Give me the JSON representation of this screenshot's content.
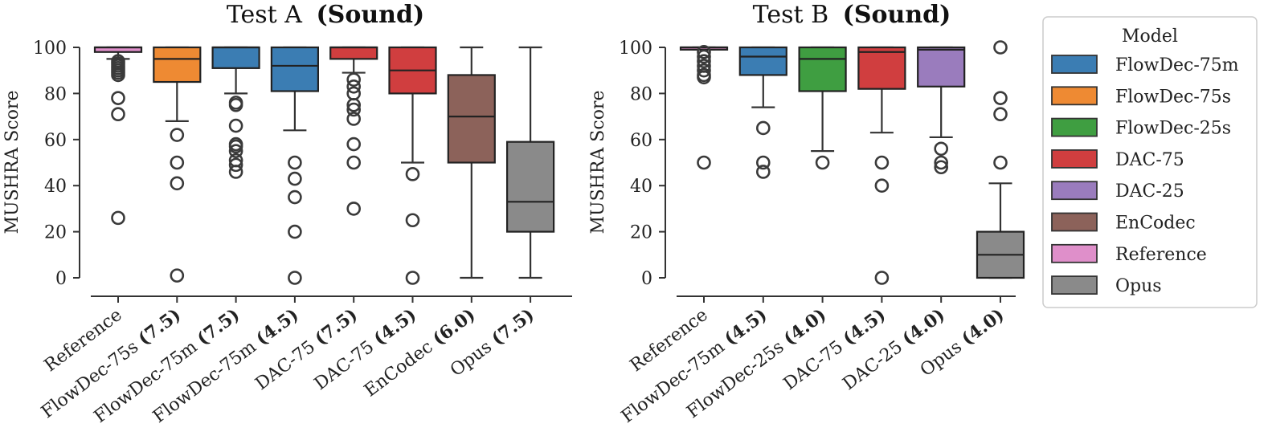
{
  "chart_data": [
    {
      "type": "box",
      "title": "Test A",
      "title_bold": "(Sound)",
      "xlabel": "",
      "ylabel": "MUSHRA Score",
      "ylim": [
        0,
        100
      ],
      "yticks": [
        0,
        20,
        40,
        60,
        80,
        100
      ],
      "grid": false,
      "categories": [
        {
          "label": "Reference",
          "bold": ""
        },
        {
          "label": "FlowDec-75s",
          "bold": "(7.5)"
        },
        {
          "label": "FlowDec-75m",
          "bold": "(7.5)"
        },
        {
          "label": "FlowDec-75m",
          "bold": "(4.5)"
        },
        {
          "label": "DAC-75",
          "bold": "(7.5)"
        },
        {
          "label": "DAC-75",
          "bold": "(4.5)"
        },
        {
          "label": "EnCodec",
          "bold": "(6.0)"
        },
        {
          "label": "Opus",
          "bold": "(7.5)"
        }
      ],
      "boxes": [
        {
          "model": "Reference",
          "whislo": 95,
          "q1": 98,
          "med": 100,
          "q3": 100,
          "whishi": 100,
          "fliers": [
            94,
            93,
            92,
            91,
            90,
            89,
            88,
            78,
            71,
            26
          ]
        },
        {
          "model": "FlowDec-75s",
          "whislo": 68,
          "q1": 85,
          "med": 95,
          "q3": 100,
          "whishi": 100,
          "fliers": [
            62,
            50,
            41,
            1
          ]
        },
        {
          "model": "FlowDec-75m",
          "whislo": 80,
          "q1": 91,
          "med": 100,
          "q3": 100,
          "whishi": 100,
          "fliers": [
            76,
            75,
            66,
            58,
            57,
            55,
            51,
            49,
            46
          ]
        },
        {
          "model": "FlowDec-75m",
          "whislo": 64,
          "q1": 81,
          "med": 92,
          "q3": 100,
          "whishi": 100,
          "fliers": [
            50,
            43,
            35,
            20,
            0
          ]
        },
        {
          "model": "DAC-75",
          "whislo": 89,
          "q1": 95,
          "med": 100,
          "q3": 100,
          "whishi": 100,
          "fliers": [
            86,
            83,
            80,
            75,
            73,
            69,
            58,
            50,
            30
          ]
        },
        {
          "model": "DAC-75",
          "whislo": 50,
          "q1": 80,
          "med": 90,
          "q3": 100,
          "whishi": 100,
          "fliers": [
            45,
            25,
            0
          ]
        },
        {
          "model": "EnCodec",
          "whislo": 0,
          "q1": 50,
          "med": 70,
          "q3": 88,
          "whishi": 100,
          "fliers": []
        },
        {
          "model": "Opus",
          "whislo": 0,
          "q1": 20,
          "med": 33,
          "q3": 59,
          "whishi": 100,
          "fliers": []
        }
      ]
    },
    {
      "type": "box",
      "title": "Test B",
      "title_bold": "(Sound)",
      "xlabel": "",
      "ylabel": "MUSHRA Score",
      "ylim": [
        0,
        100
      ],
      "yticks": [
        0,
        20,
        40,
        60,
        80,
        100
      ],
      "grid": false,
      "categories": [
        {
          "label": "Reference",
          "bold": ""
        },
        {
          "label": "FlowDec-75m",
          "bold": "(4.5)"
        },
        {
          "label": "FlowDec-25s",
          "bold": "(4.0)"
        },
        {
          "label": "DAC-75",
          "bold": "(4.5)"
        },
        {
          "label": "DAC-25",
          "bold": "(4.0)"
        },
        {
          "label": "Opus",
          "bold": "(4.0)"
        }
      ],
      "boxes": [
        {
          "model": "Reference",
          "whislo": 99,
          "q1": 99,
          "med": 100,
          "q3": 100,
          "whishi": 100,
          "fliers": [
            98,
            96,
            94,
            92,
            90,
            88,
            87,
            50
          ]
        },
        {
          "model": "FlowDec-75m",
          "whislo": 74,
          "q1": 88,
          "med": 96,
          "q3": 100,
          "whishi": 100,
          "fliers": [
            65,
            50,
            46
          ]
        },
        {
          "model": "FlowDec-25s",
          "whislo": 55,
          "q1": 81,
          "med": 95,
          "q3": 100,
          "whishi": 100,
          "fliers": [
            50
          ]
        },
        {
          "model": "DAC-75",
          "whislo": 63,
          "q1": 82,
          "med": 98,
          "q3": 100,
          "whishi": 100,
          "fliers": [
            50,
            40,
            0
          ]
        },
        {
          "model": "DAC-25",
          "whislo": 61,
          "q1": 83,
          "med": 99,
          "q3": 100,
          "whishi": 100,
          "fliers": [
            56,
            50,
            48
          ]
        },
        {
          "model": "Opus",
          "whislo": 0,
          "q1": 0,
          "med": 10,
          "q3": 20,
          "whishi": 41,
          "fliers": [
            100,
            78,
            71,
            50
          ]
        }
      ]
    }
  ],
  "legend": {
    "title": "Model",
    "placement": "right",
    "items": [
      {
        "label": "FlowDec-75m",
        "color": "#3b7db3"
      },
      {
        "label": "FlowDec-75s",
        "color": "#ee8a33"
      },
      {
        "label": "FlowDec-25s",
        "color": "#3f9e41"
      },
      {
        "label": "DAC-75",
        "color": "#d03e3f"
      },
      {
        "label": "DAC-25",
        "color": "#9a7cbd"
      },
      {
        "label": "EnCodec",
        "color": "#8c625a"
      },
      {
        "label": "Reference",
        "color": "#df8fca"
      },
      {
        "label": "Opus",
        "color": "#8a8a8a"
      }
    ]
  }
}
